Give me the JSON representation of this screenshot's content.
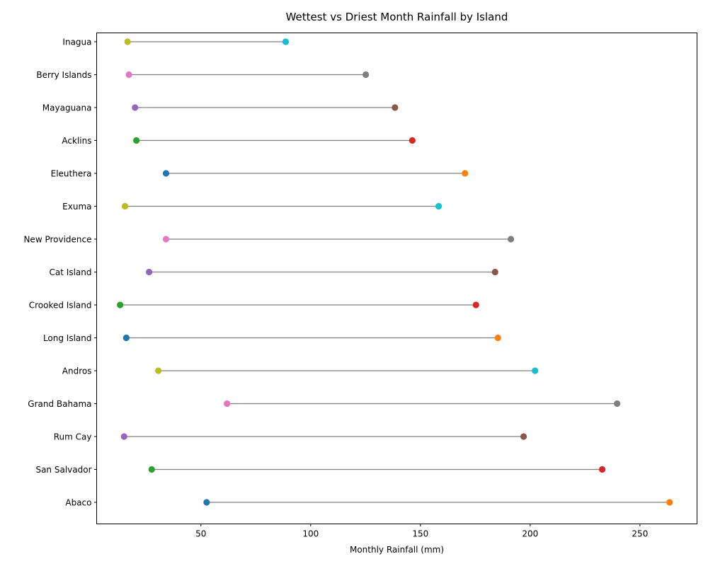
{
  "chart_data": {
    "type": "dumbbell",
    "title": "Wettest vs Driest Month Rainfall by Island",
    "xlabel": "Monthly Rainfall (mm)",
    "ylabel": "",
    "xlim": [
      2.5,
      276
    ],
    "xticks": [
      50,
      100,
      150,
      200,
      250
    ],
    "grid": false,
    "categories": [
      "Abaco",
      "San Salvador",
      "Rum Cay",
      "Grand Bahama",
      "Andros",
      "Long Island",
      "Crooked Island",
      "Cat Island",
      "New Providence",
      "Exuma",
      "Eleuthera",
      "Acklins",
      "Mayaguana",
      "Berry Islands",
      "Inagua"
    ],
    "series": [
      {
        "values": [
          52.6,
          27.6,
          15.0,
          61.9,
          30.6,
          16.0,
          13.2,
          26.4,
          34.1,
          15.4,
          34.1,
          20.6,
          20.0,
          17.2,
          16.6
        ]
      },
      {
        "values": [
          263.5,
          232.8,
          197.0,
          239.6,
          202.2,
          185.3,
          175.3,
          184.0,
          191.2,
          158.3,
          170.3,
          146.3,
          138.4,
          125.1,
          88.6
        ]
      }
    ],
    "connector_color": "#808080",
    "colors": {
      "driest": [
        "#1f77b4",
        "#2ca02c",
        "#9467bd",
        "#e377c2",
        "#bcbd22",
        "#1f77b4",
        "#2ca02c",
        "#9467bd",
        "#e377c2",
        "#bcbd22",
        "#1f77b4",
        "#2ca02c",
        "#9467bd",
        "#e377c2",
        "#bcbd22"
      ],
      "wettest": [
        "#ff7f0e",
        "#d62728",
        "#8c564b",
        "#7f7f7f",
        "#17becf",
        "#ff7f0e",
        "#d62728",
        "#8c564b",
        "#7f7f7f",
        "#17becf",
        "#ff7f0e",
        "#d62728",
        "#8c564b",
        "#7f7f7f",
        "#17becf"
      ]
    }
  }
}
